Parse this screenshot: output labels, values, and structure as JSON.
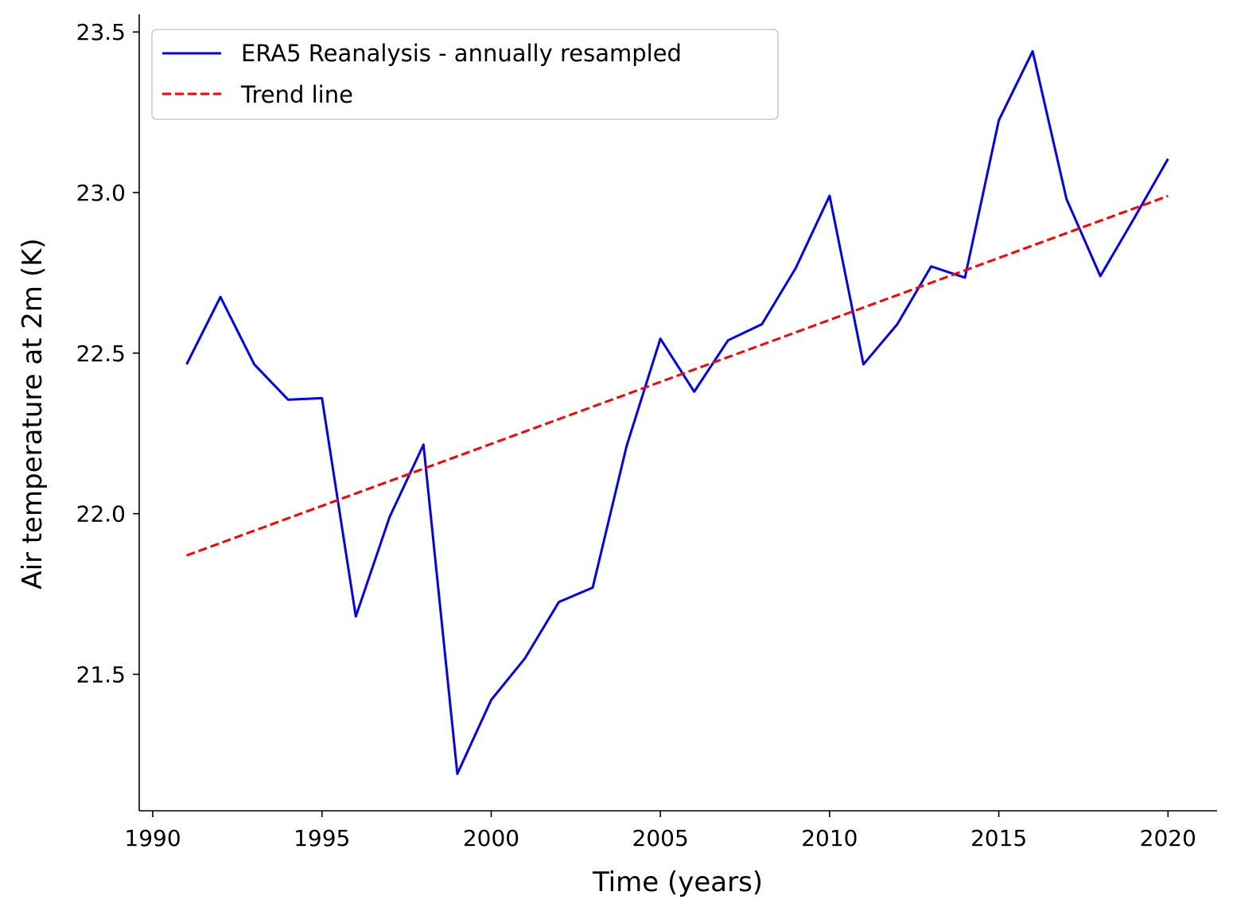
{
  "chart_data": {
    "type": "line",
    "title": "",
    "xlabel": "Time (years)",
    "ylabel": "Air temperature at 2m (K)",
    "xlim": [
      1989.6,
      2021.45
    ],
    "ylim": [
      21.075,
      23.555
    ],
    "xticks": [
      1990,
      1995,
      2000,
      2005,
      2010,
      2015,
      2020
    ],
    "yticks": [
      21.5,
      22.0,
      22.5,
      23.0,
      23.5
    ],
    "grid": false,
    "legend_position": "top-left",
    "colors": {
      "series": "#0000ff",
      "trend": "#ff0000",
      "axis": "#000000",
      "legend_border": "#cccccc"
    },
    "x": [
      1991,
      1992,
      1993,
      1994,
      1995,
      1996,
      1997,
      1998,
      1999,
      2000,
      2001,
      2002,
      2003,
      2004,
      2005,
      2006,
      2007,
      2008,
      2009,
      2010,
      2011,
      2012,
      2013,
      2014,
      2015,
      2016,
      2017,
      2018,
      2019,
      2020
    ],
    "series": [
      {
        "name": "ERA5 Reanalysis - annually resampled",
        "style": "solid",
        "color": "#0000ff",
        "values": [
          22.465,
          22.675,
          22.465,
          22.355,
          22.36,
          21.68,
          21.99,
          22.215,
          21.19,
          21.42,
          21.55,
          21.725,
          21.77,
          22.21,
          22.545,
          22.38,
          22.54,
          22.59,
          22.765,
          22.99,
          22.465,
          22.59,
          22.77,
          22.735,
          23.225,
          23.44,
          22.98,
          22.74,
          22.92,
          23.105
        ]
      },
      {
        "name": "Trend line",
        "style": "dashed",
        "color": "#ff0000",
        "values": [
          21.87,
          21.9086,
          21.9472,
          21.9858,
          22.0244,
          22.063,
          22.1016,
          22.1402,
          22.1788,
          22.2174,
          22.256,
          22.2946,
          22.3332,
          22.3718,
          22.4104,
          22.449,
          22.4876,
          22.5262,
          22.5648,
          22.6034,
          22.642,
          22.6806,
          22.7192,
          22.7578,
          22.7964,
          22.835,
          22.8736,
          22.9122,
          22.9508,
          22.9894
        ]
      }
    ]
  }
}
